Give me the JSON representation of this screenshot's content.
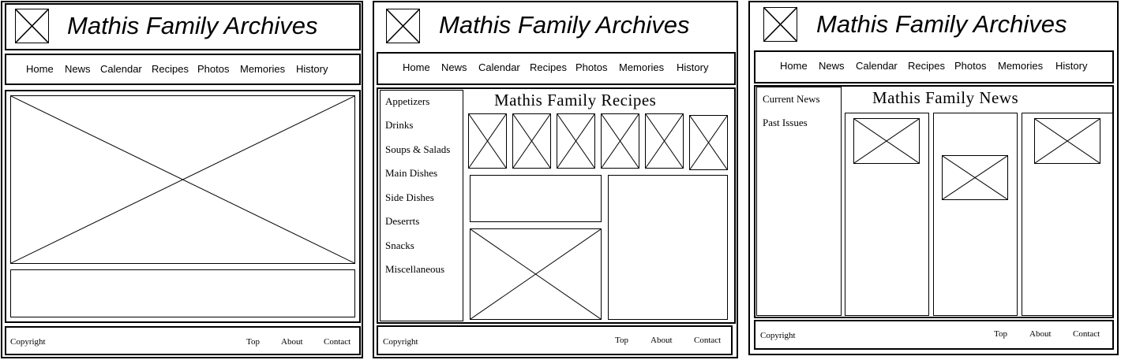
{
  "site_title": "Mathis Family Archives",
  "nav": [
    "Home",
    "News",
    "Calendar",
    "Recipes",
    "Photos",
    "Memories",
    "History"
  ],
  "footer": {
    "copyright": "Copyright",
    "links": [
      "Top",
      "About",
      "Contact"
    ]
  },
  "recipes": {
    "heading": "Mathis Family Recipes",
    "categories": [
      "Appetizers",
      "Drinks",
      "Soups & Salads",
      "Main Dishes",
      "Side Dishes",
      "Deserrts",
      "Snacks",
      "Miscellaneous"
    ]
  },
  "news": {
    "heading": "Mathis Family News",
    "sidebar": [
      "Current News",
      "Past Issues"
    ]
  }
}
